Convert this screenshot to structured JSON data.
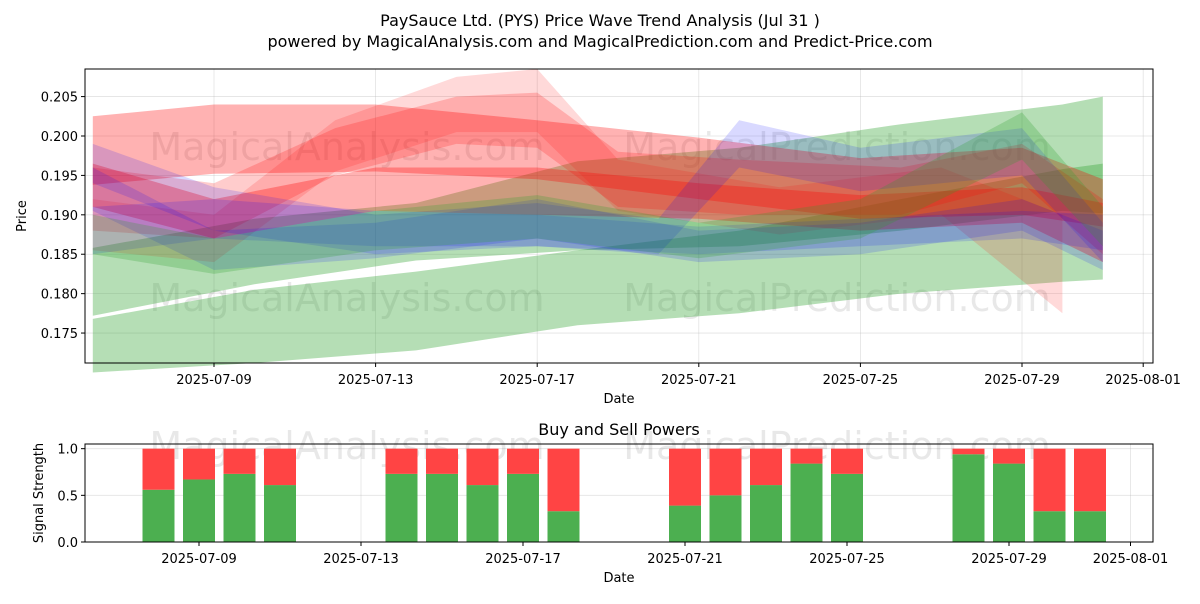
{
  "title_line1": "PaySauce Ltd. (PYS) Price Wave Trend Analysis (Jul 31 )",
  "title_line2": "powered by MagicalAnalysis.com and MagicalPrediction.com and Predict-Price.com",
  "watermarks": [
    "MagicalAnalysis.com",
    "MagicalPrediction.com"
  ],
  "colors": {
    "green": "#2ca02c",
    "red": "#ff0000",
    "blue": "#0000ff",
    "buy": "#4caf50",
    "sell": "#ff4444"
  },
  "chart_data": [
    {
      "type": "area",
      "title": "",
      "xlabel": "Date",
      "ylabel": "Price",
      "xlim": [
        "2025-07-06",
        "2025-08-01"
      ],
      "ylim": [
        0.1712,
        0.2085
      ],
      "xticks": [
        "2025-07-09",
        "2025-07-13",
        "2025-07-17",
        "2025-07-21",
        "2025-07-25",
        "2025-07-29",
        "2025-08-01"
      ],
      "yticks": [
        0.175,
        0.18,
        0.185,
        0.19,
        0.195,
        0.2,
        0.205
      ],
      "ytick_labels": [
        "0.175",
        "0.180",
        "0.185",
        "0.190",
        "0.195",
        "0.200",
        "0.205"
      ],
      "grid": true,
      "bands": [
        {
          "color": "green",
          "opacity": 0.35,
          "x": [
            "2025-07-06",
            "2025-07-10",
            "2025-07-14",
            "2025-07-18",
            "2025-07-22",
            "2025-07-26",
            "2025-07-30",
            "2025-07-31"
          ],
          "upper": [
            0.1768,
            0.1805,
            0.1828,
            0.1855,
            0.188,
            0.192,
            0.1958,
            0.1965
          ],
          "lower": [
            0.17,
            0.1712,
            0.1728,
            0.176,
            0.1775,
            0.18,
            0.1815,
            0.1818
          ]
        },
        {
          "color": "green",
          "opacity": 0.35,
          "x": [
            "2025-07-06",
            "2025-07-10",
            "2025-07-14",
            "2025-07-18",
            "2025-07-22",
            "2025-07-26",
            "2025-07-30",
            "2025-07-31"
          ],
          "upper": [
            0.1858,
            0.1895,
            0.1915,
            0.1968,
            0.1985,
            0.2015,
            0.204,
            0.205
          ],
          "lower": [
            0.1772,
            0.1812,
            0.1842,
            0.1855,
            0.186,
            0.188,
            0.1905,
            0.1902
          ]
        },
        {
          "color": "red",
          "opacity": 0.3,
          "x": [
            "2025-07-06",
            "2025-07-09",
            "2025-07-13",
            "2025-07-17",
            "2025-07-21",
            "2025-07-25",
            "2025-07-29",
            "2025-07-31"
          ],
          "upper": [
            0.2025,
            0.204,
            0.204,
            0.202,
            0.1998,
            0.1972,
            0.1985,
            0.1945
          ],
          "lower": [
            0.1938,
            0.1952,
            0.1955,
            0.1945,
            0.192,
            0.1895,
            0.19,
            0.1885
          ]
        },
        {
          "color": "red",
          "opacity": 0.2,
          "x": [
            "2025-07-06",
            "2025-07-09",
            "2025-07-12",
            "2025-07-15",
            "2025-07-17",
            "2025-07-19",
            "2025-07-22",
            "2025-07-26",
            "2025-07-29",
            "2025-07-31"
          ],
          "upper": [
            0.196,
            0.194,
            0.201,
            0.205,
            0.2055,
            0.198,
            0.197,
            0.196,
            0.199,
            0.192
          ],
          "lower": [
            0.188,
            0.187,
            0.195,
            0.199,
            0.1985,
            0.191,
            0.19,
            0.19,
            0.194,
            0.185
          ]
        },
        {
          "color": "red",
          "opacity": 0.15,
          "x": [
            "2025-07-06",
            "2025-07-09",
            "2025-07-12",
            "2025-07-15",
            "2025-07-17",
            "2025-07-19",
            "2025-07-23",
            "2025-07-27",
            "2025-07-30"
          ],
          "upper": [
            0.192,
            0.19,
            0.202,
            0.2075,
            0.2085,
            0.197,
            0.1935,
            0.196,
            0.19
          ],
          "lower": [
            0.1855,
            0.184,
            0.1955,
            0.2005,
            0.2005,
            0.1905,
            0.1875,
            0.19,
            0.1775
          ]
        },
        {
          "color": "red",
          "opacity": 0.3,
          "x": [
            "2025-07-06",
            "2025-07-09",
            "2025-07-13",
            "2025-07-17",
            "2025-07-21",
            "2025-07-25",
            "2025-07-29",
            "2025-07-31"
          ],
          "upper": [
            0.1965,
            0.192,
            0.196,
            0.196,
            0.194,
            0.1925,
            0.1935,
            0.1915
          ],
          "lower": [
            0.191,
            0.187,
            0.1905,
            0.19,
            0.1895,
            0.188,
            0.189,
            0.184
          ]
        },
        {
          "color": "blue",
          "opacity": 0.15,
          "x": [
            "2025-07-06",
            "2025-07-09",
            "2025-07-13",
            "2025-07-17",
            "2025-07-20",
            "2025-07-22",
            "2025-07-25",
            "2025-07-29",
            "2025-07-31"
          ],
          "upper": [
            0.199,
            0.1935,
            0.19,
            0.1915,
            0.1895,
            0.202,
            0.1985,
            0.201,
            0.189
          ],
          "lower": [
            0.194,
            0.188,
            0.185,
            0.186,
            0.185,
            0.196,
            0.193,
            0.195,
            0.184
          ]
        },
        {
          "color": "blue",
          "opacity": 0.15,
          "x": [
            "2025-07-06",
            "2025-07-09",
            "2025-07-13",
            "2025-07-17",
            "2025-07-21",
            "2025-07-25",
            "2025-07-29",
            "2025-07-31"
          ],
          "upper": [
            0.196,
            0.188,
            0.189,
            0.192,
            0.188,
            0.189,
            0.192,
            0.188
          ],
          "lower": [
            0.1905,
            0.183,
            0.1845,
            0.187,
            0.184,
            0.185,
            0.188,
            0.183
          ]
        },
        {
          "color": "blue",
          "opacity": 0.15,
          "x": [
            "2025-07-06",
            "2025-07-09",
            "2025-07-13",
            "2025-07-17",
            "2025-07-21",
            "2025-07-25",
            "2025-07-29",
            "2025-07-31"
          ],
          "upper": [
            0.191,
            0.192,
            0.1905,
            0.19,
            0.1885,
            0.1895,
            0.1905,
            0.19
          ],
          "lower": [
            0.185,
            0.187,
            0.186,
            0.186,
            0.185,
            0.186,
            0.187,
            0.1855
          ]
        },
        {
          "color": "green",
          "opacity": 0.25,
          "x": [
            "2025-07-06",
            "2025-07-09",
            "2025-07-13",
            "2025-07-17",
            "2025-07-21",
            "2025-07-25",
            "2025-07-29",
            "2025-07-31"
          ],
          "upper": [
            0.19,
            0.187,
            0.1905,
            0.1925,
            0.189,
            0.192,
            0.203,
            0.191
          ],
          "lower": [
            0.185,
            0.1825,
            0.1855,
            0.187,
            0.1845,
            0.187,
            0.197,
            0.186
          ]
        }
      ]
    },
    {
      "type": "bar",
      "title": "Buy and Sell Powers",
      "xlabel": "Date",
      "ylabel": "Signal Strength",
      "xlim": [
        "2025-07-06",
        "2025-08-01"
      ],
      "ylim": [
        0,
        1.05
      ],
      "xticks": [
        "2025-07-09",
        "2025-07-13",
        "2025-07-17",
        "2025-07-21",
        "2025-07-25",
        "2025-07-29",
        "2025-08-01"
      ],
      "yticks": [
        0.0,
        0.5,
        1.0
      ],
      "ytick_labels": [
        "0.0",
        "0.5",
        "1.0"
      ],
      "grid": true,
      "categories": [
        "2025-07-08",
        "2025-07-09",
        "2025-07-10",
        "2025-07-11",
        "2025-07-14",
        "2025-07-15",
        "2025-07-16",
        "2025-07-17",
        "2025-07-18",
        "2025-07-21",
        "2025-07-22",
        "2025-07-23",
        "2025-07-24",
        "2025-07-25",
        "2025-07-28",
        "2025-07-29",
        "2025-07-30",
        "2025-07-31"
      ],
      "series": [
        {
          "key": "buy",
          "values": [
            0.56,
            0.67,
            0.73,
            0.61,
            0.73,
            0.73,
            0.61,
            0.73,
            0.33,
            0.39,
            0.5,
            0.61,
            0.84,
            0.73,
            0.94,
            0.84,
            0.33,
            0.33
          ]
        },
        {
          "key": "sell",
          "values": [
            0.44,
            0.33,
            0.27,
            0.39,
            0.27,
            0.27,
            0.39,
            0.27,
            0.67,
            0.61,
            0.5,
            0.39,
            0.16,
            0.27,
            0.06,
            0.16,
            0.67,
            0.67
          ]
        }
      ]
    }
  ]
}
